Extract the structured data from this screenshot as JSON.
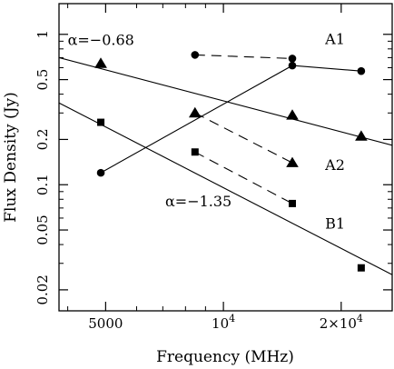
{
  "chart_data": {
    "type": "scatter",
    "xlabel": "Frequency (MHz)",
    "ylabel": "Flux Density (Jy)",
    "xscale": "log",
    "yscale": "log",
    "xlim": [
      3800,
      27000
    ],
    "ylim": [
      0.0145,
      1.6
    ],
    "xticks": [
      {
        "value": 5000,
        "label": "5000"
      },
      {
        "value": 10000,
        "label": "10^4"
      },
      {
        "value": 20000,
        "label": "2×10^4"
      }
    ],
    "xticks_minor": [
      4000,
      6000,
      7000,
      8000,
      9000,
      30000
    ],
    "yticks": [
      {
        "value": 0.02,
        "label": "0.02"
      },
      {
        "value": 0.05,
        "label": "0.05"
      },
      {
        "value": 0.1,
        "label": "0.1"
      },
      {
        "value": 0.2,
        "label": "0.2"
      },
      {
        "value": 0.5,
        "label": "0.5"
      },
      {
        "value": 1,
        "label": "1"
      }
    ],
    "yticks_minor": [
      0.03,
      0.04,
      0.06,
      0.07,
      0.08,
      0.09,
      0.3,
      0.4,
      0.6,
      0.7,
      0.8,
      0.9
    ],
    "series": [
      {
        "marker": "circle",
        "x": [
          4860,
          15000,
          22500
        ],
        "y": [
          0.12,
          0.62,
          0.57
        ]
      },
      {
        "marker": "circle",
        "x": [
          8460,
          15000
        ],
        "y": [
          0.73,
          0.69
        ]
      },
      {
        "marker": "triangle",
        "x": [
          4860,
          8460,
          15000,
          22500
        ],
        "y": [
          0.64,
          0.3,
          0.29,
          0.21
        ]
      },
      {
        "marker": "triangle",
        "x": [
          15000
        ],
        "y": [
          0.14
        ]
      },
      {
        "marker": "square",
        "x": [
          4860,
          8460,
          15000,
          22500
        ],
        "y": [
          0.26,
          0.165,
          0.075,
          0.028
        ]
      }
    ],
    "fit_lines": [
      {
        "style": "solid",
        "x": [
          3800,
          27000
        ],
        "y": [
          0.7,
          0.183
        ]
      },
      {
        "style": "solid",
        "x": [
          3800,
          27000
        ],
        "y": [
          0.35,
          0.0252
        ]
      },
      {
        "style": "solid",
        "x": [
          4860,
          15000,
          22500
        ],
        "y": [
          0.12,
          0.62,
          0.57
        ]
      }
    ],
    "dashed_lines": [
      {
        "x": [
          8460,
          15000
        ],
        "y": [
          0.73,
          0.69
        ]
      },
      {
        "x": [
          8460,
          15000
        ],
        "y": [
          0.3,
          0.14
        ]
      },
      {
        "x": [
          8460,
          15000
        ],
        "y": [
          0.165,
          0.075
        ]
      }
    ],
    "annotations": [
      {
        "text": "α=−0.68",
        "x": 4000,
        "y": 0.85
      },
      {
        "text": "α=−1.35",
        "x": 7100,
        "y": 0.072
      },
      {
        "text": "A1",
        "x": 18200,
        "y": 0.86
      },
      {
        "text": "A2",
        "x": 18200,
        "y": 0.125
      },
      {
        "text": "B1",
        "x": 18200,
        "y": 0.051
      }
    ]
  }
}
